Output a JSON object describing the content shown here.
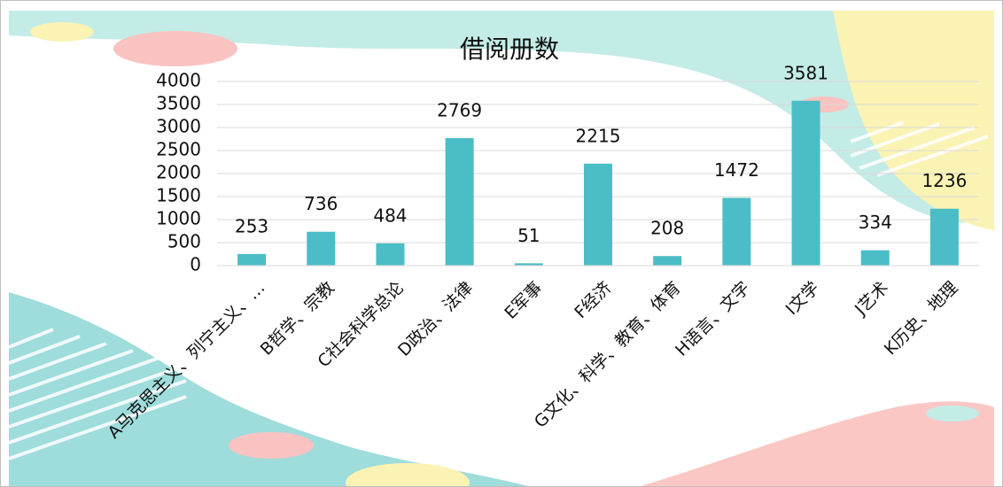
{
  "chart_data": {
    "type": "bar",
    "title": "借阅册数",
    "categories": [
      "A马克思主义、列宁主义、…",
      "B哲学、宗教",
      "C社会科学总论",
      "D政治、法律",
      "E军事",
      "F经济",
      "G文化、科学、教育、体育",
      "H语言、文字",
      "I文学",
      "J艺术",
      "K历史、地理"
    ],
    "values": [
      253,
      736,
      484,
      2769,
      51,
      2215,
      208,
      1472,
      3581,
      334,
      1236
    ],
    "color": "#4bbdc6",
    "ylim": [
      0,
      4000
    ],
    "yticks": [
      0,
      500,
      1000,
      1500,
      2000,
      2500,
      3000,
      3500,
      4000
    ],
    "grid": true
  }
}
